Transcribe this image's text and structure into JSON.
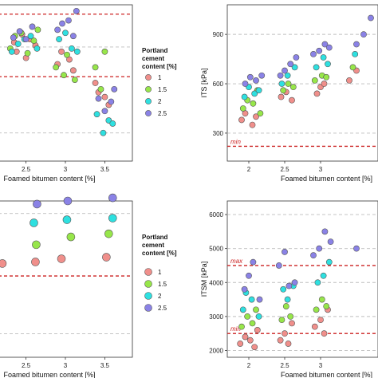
{
  "colors": {
    "pc_1": "#f08f8b",
    "pc_1_5": "#97e64a",
    "pc_2": "#2ee0e0",
    "pc_2_5": "#8a82e6",
    "limit": "#cc2222",
    "ref": "#bdbdbd"
  },
  "legend": {
    "title_line1": "Portland",
    "title_line2": "cement",
    "title_line3": "content [%]",
    "items": [
      "1",
      "1.5",
      "2",
      "2.5"
    ]
  },
  "chart_data": [
    {
      "id": "top-left",
      "type": "scatter",
      "xlabel": "Foamed bitumen content [%]",
      "ylabel": "",
      "xlim": [
        2.15,
        3.85
      ],
      "ylim": [
        0,
        100
      ],
      "x_ticks": [
        "2.5",
        "3",
        "3.5"
      ],
      "y_ticks": [],
      "hlines": [
        {
          "y": 94,
          "style": "limit"
        },
        {
          "y": 73,
          "style": "ref"
        },
        {
          "y": 54,
          "style": "limit"
        },
        {
          "y": 18,
          "style": "ref"
        }
      ],
      "series": [
        {
          "name": "1",
          "x": [
            2.35,
            2.38,
            2.45,
            2.5,
            2.55,
            2.62,
            2.9,
            2.95,
            3.05,
            3.1,
            3.38,
            3.42,
            3.5,
            3.55
          ],
          "y": [
            76,
            70,
            81,
            66,
            78,
            74,
            62,
            70,
            65,
            58,
            50,
            44,
            41,
            36
          ]
        },
        {
          "name": "1.5",
          "x": [
            2.3,
            2.36,
            2.44,
            2.52,
            2.6,
            2.65,
            2.88,
            2.98,
            3.02,
            3.12,
            3.38,
            3.45,
            3.5
          ],
          "y": [
            72,
            80,
            82,
            69,
            77,
            84,
            60,
            55,
            68,
            52,
            60,
            46,
            70
          ]
        },
        {
          "name": "2",
          "x": [
            2.32,
            2.4,
            2.48,
            2.56,
            2.64,
            2.92,
            3.0,
            3.08,
            3.15,
            3.4,
            3.48,
            3.55,
            3.6
          ],
          "y": [
            70,
            75,
            78,
            80,
            72,
            78,
            82,
            72,
            70,
            30,
            18,
            26,
            24
          ]
        },
        {
          "name": "2.5",
          "x": [
            2.34,
            2.42,
            2.5,
            2.58,
            2.9,
            2.96,
            3.04,
            3.1,
            3.14,
            3.42,
            3.5,
            3.58,
            3.62
          ],
          "y": [
            79,
            83,
            78,
            86,
            84,
            88,
            90,
            80,
            96,
            40,
            32,
            38,
            46
          ]
        }
      ]
    },
    {
      "id": "top-right",
      "type": "scatter",
      "xlabel": "Foamed bitumen content [%]",
      "ylabel": "ITS [kPa]",
      "xlim": [
        1.7,
        3.8
      ],
      "ylim": [
        130,
        1080
      ],
      "x_ticks": [
        "2",
        "2.5",
        "3"
      ],
      "y_ticks": [
        "300",
        "600",
        "900"
      ],
      "hlines": [
        {
          "y": 900,
          "style": "ref"
        },
        {
          "y": 600,
          "style": "ref"
        },
        {
          "y": 300,
          "style": "ref"
        },
        {
          "y": 220,
          "style": "limit",
          "label": "min"
        }
      ],
      "series": [
        {
          "name": "1",
          "x": [
            1.9,
            1.95,
            2.05,
            2.1,
            2.45,
            2.52,
            2.6,
            2.95,
            3.0,
            3.05,
            3.4,
            3.5
          ],
          "y": [
            380,
            420,
            350,
            400,
            520,
            550,
            500,
            540,
            580,
            600,
            620,
            680
          ]
        },
        {
          "name": "1.5",
          "x": [
            1.92,
            1.98,
            2.06,
            2.12,
            2.16,
            2.48,
            2.55,
            2.62,
            2.92,
            3.02,
            3.08,
            3.45
          ],
          "y": [
            450,
            500,
            480,
            560,
            420,
            560,
            600,
            580,
            620,
            650,
            640,
            700
          ]
        },
        {
          "name": "2",
          "x": [
            1.94,
            2.0,
            2.08,
            2.14,
            2.46,
            2.54,
            2.64,
            2.94,
            3.04,
            3.1,
            3.48
          ],
          "y": [
            520,
            580,
            540,
            560,
            600,
            650,
            700,
            700,
            760,
            720,
            780
          ]
        },
        {
          "name": "2.5",
          "x": [
            1.95,
            2.02,
            2.1,
            2.18,
            2.44,
            2.5,
            2.58,
            2.66,
            2.9,
            2.98,
            3.06,
            3.12,
            3.5,
            3.6,
            3.7
          ],
          "y": [
            600,
            640,
            620,
            650,
            650,
            680,
            720,
            760,
            780,
            800,
            840,
            820,
            840,
            900,
            1000
          ]
        }
      ]
    },
    {
      "id": "bottom-left",
      "type": "scatter",
      "xlabel": "Foamed bitumen content [%]",
      "ylabel": "",
      "xlim": [
        2.15,
        3.85
      ],
      "ylim": [
        0,
        100
      ],
      "x_ticks": [
        "2.5",
        "3",
        "3.5"
      ],
      "y_ticks": [],
      "hlines": [
        {
          "y": 92,
          "style": "ref"
        },
        {
          "y": 52,
          "style": "limit"
        },
        {
          "y": 15,
          "style": "ref"
        }
      ],
      "series": [
        {
          "name": "1",
          "x": [
            2.2,
            2.62,
            2.95,
            3.52
          ],
          "y": [
            60,
            61,
            63,
            64
          ]
        },
        {
          "name": "1.5",
          "x": [
            2.63,
            3.07,
            3.55
          ],
          "y": [
            72,
            77,
            79
          ]
        },
        {
          "name": "2",
          "x": [
            2.6,
            3.02,
            3.6
          ],
          "y": [
            86,
            88,
            89
          ]
        },
        {
          "name": "2.5",
          "x": [
            2.64,
            3.03,
            3.6
          ],
          "y": [
            98,
            100,
            102
          ]
        }
      ]
    },
    {
      "id": "bottom-right",
      "type": "scatter",
      "xlabel": "Foamed bitumen content [%]",
      "ylabel": "ITSM [kPa]",
      "xlim": [
        1.7,
        3.8
      ],
      "ylim": [
        1800,
        6400
      ],
      "x_ticks": [
        "2",
        "2.5",
        "3"
      ],
      "y_ticks": [
        "2000",
        "3000",
        "4000",
        "5000",
        "6000"
      ],
      "hlines": [
        {
          "y": 6000,
          "style": "ref"
        },
        {
          "y": 5000,
          "style": "ref"
        },
        {
          "y": 4500,
          "style": "limit",
          "label": "max"
        },
        {
          "y": 4000,
          "style": "ref"
        },
        {
          "y": 3000,
          "style": "ref"
        },
        {
          "y": 2500,
          "style": "limit",
          "label": "min"
        },
        {
          "y": 2000,
          "style": "ref"
        }
      ],
      "series": [
        {
          "name": "1",
          "x": [
            1.88,
            1.95,
            2.02,
            2.08,
            2.12,
            2.44,
            2.5,
            2.55,
            2.6,
            2.92,
            3.0,
            3.05,
            3.1
          ],
          "y": [
            2200,
            2400,
            2300,
            2100,
            2600,
            2300,
            2500,
            2200,
            2800,
            2700,
            2900,
            2500,
            3200
          ]
        },
        {
          "name": "1.5",
          "x": [
            1.9,
            1.98,
            2.05,
            2.1,
            2.46,
            2.52,
            2.58,
            2.94,
            3.02,
            3.08
          ],
          "y": [
            2700,
            3000,
            2800,
            3200,
            2900,
            3300,
            3000,
            3200,
            3500,
            3300
          ]
        },
        {
          "name": "2",
          "x": [
            1.92,
            1.96,
            2.04,
            2.14,
            2.48,
            2.54,
            2.62,
            2.96,
            3.04,
            3.12
          ],
          "y": [
            3200,
            3700,
            3500,
            3000,
            3800,
            3500,
            3900,
            4000,
            4200,
            4600
          ]
        },
        {
          "name": "2.5",
          "x": [
            1.94,
            2.0,
            2.06,
            2.15,
            2.42,
            2.5,
            2.56,
            2.64,
            2.9,
            2.98,
            3.06,
            3.14,
            3.5
          ],
          "y": [
            3800,
            4200,
            4600,
            3500,
            4500,
            4900,
            3900,
            4000,
            4800,
            5000,
            5500,
            5200,
            5000
          ]
        }
      ]
    }
  ]
}
